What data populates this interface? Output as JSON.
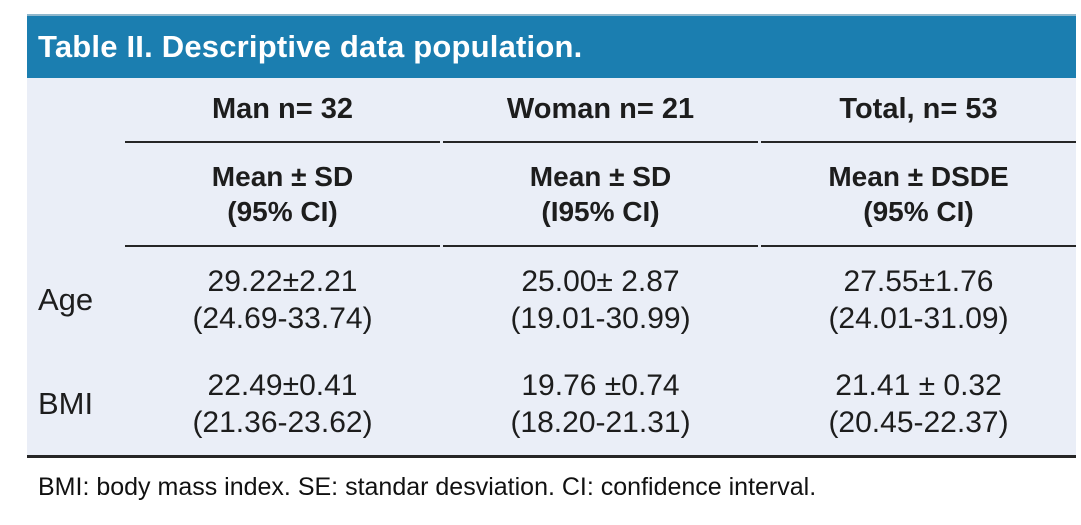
{
  "title": "Table II. Descriptive data population.",
  "table": {
    "group_headers": [
      "Man n= 32",
      "Woman n= 21",
      "Total, n= 53"
    ],
    "sub_headers": [
      {
        "line1": "Mean ± SD",
        "line2": "(95% CI)"
      },
      {
        "line1": "Mean ± SD",
        "line2": "(I95% CI)"
      },
      {
        "line1": "Mean ± DSDE",
        "line2": "(95% CI)"
      }
    ],
    "rows": [
      {
        "label": "Age",
        "cells": [
          {
            "mean_sd": "29.22±2.21",
            "ci": "(24.69-33.74)"
          },
          {
            "mean_sd": "25.00± 2.87",
            "ci": "(19.01-30.99)"
          },
          {
            "mean_sd": "27.55±1.76",
            "ci": "(24.01-31.09)"
          }
        ]
      },
      {
        "label": "BMI",
        "cells": [
          {
            "mean_sd": "22.49±0.41",
            "ci": "(21.36-23.62)"
          },
          {
            "mean_sd": "19.76 ±0.74",
            "ci": "(18.20-21.31)"
          },
          {
            "mean_sd": "21.41 ± 0.32",
            "ci": "(20.45-22.37)"
          }
        ]
      }
    ]
  },
  "footnote": "BMI: body mass index. SE: standar desviation. CI: confidence interval.",
  "colors": {
    "title_bar": "#1b7eb0",
    "title_bar_top_edge": "#8fb7cc",
    "title_text": "#ffffff",
    "table_background": "#eaeef7",
    "rule": "#262626",
    "body_text": "#1d1d1d"
  }
}
